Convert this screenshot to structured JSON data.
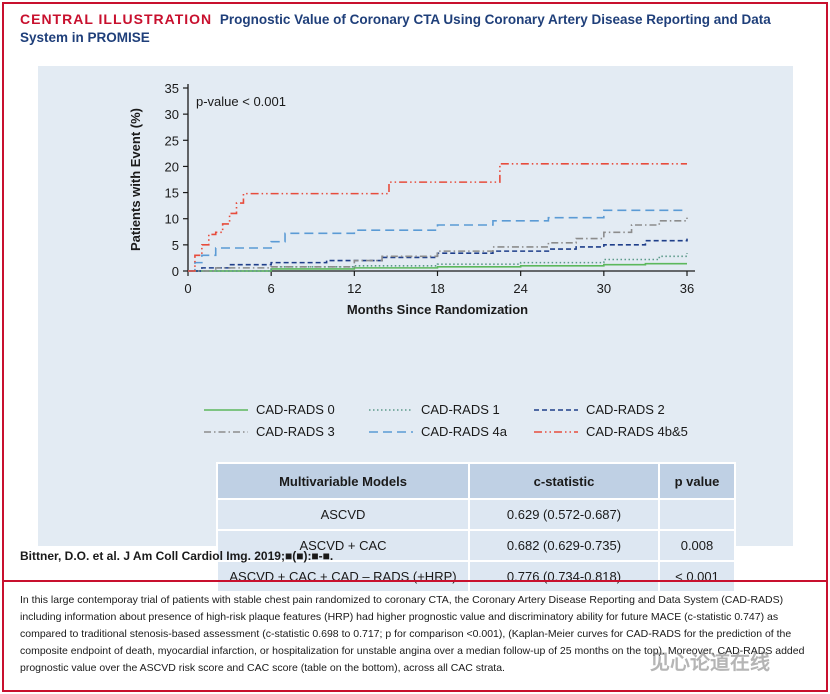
{
  "header": {
    "tag": "CENTRAL ILLUSTRATION",
    "title": "Prognostic Value of Coronary CTA Using Coronary Artery Disease Reporting and Data System in PROMISE"
  },
  "chart_data": {
    "type": "line",
    "title": "",
    "annotation": "p-value < 0.001",
    "xlabel": "Months Since Randomization",
    "ylabel": "Patients with Event (%)",
    "xlim": [
      0,
      36
    ],
    "ylim": [
      0,
      35
    ],
    "xticks": [
      0,
      6,
      12,
      18,
      24,
      30,
      36
    ],
    "yticks": [
      0,
      5,
      10,
      15,
      20,
      25,
      30,
      35
    ],
    "grid": false,
    "legend_position": "bottom",
    "series": [
      {
        "name": "CAD-RADS 0",
        "color": "#5cb85c",
        "dash": "solid",
        "x": [
          0,
          6,
          12,
          18,
          24,
          26,
          30,
          33,
          36
        ],
        "y": [
          0,
          0.4,
          0.6,
          0.8,
          1.0,
          1.0,
          1.2,
          1.4,
          1.4
        ]
      },
      {
        "name": "CAD-RADS 1",
        "color": "#5c9a8a",
        "dash": "dotted",
        "x": [
          0,
          6,
          12,
          18,
          24,
          30,
          34,
          36
        ],
        "y": [
          0,
          0.8,
          1.0,
          1.3,
          1.6,
          2.2,
          2.8,
          3.4
        ]
      },
      {
        "name": "CAD-RADS 2",
        "color": "#1f3f8a",
        "dash": "dashed",
        "x": [
          0,
          1,
          3,
          6,
          10,
          14,
          18,
          22,
          26,
          28,
          30,
          33,
          36
        ],
        "y": [
          0,
          0.6,
          1.2,
          1.6,
          2.0,
          2.6,
          3.4,
          3.8,
          4.2,
          4.6,
          5.0,
          5.8,
          6.2
        ]
      },
      {
        "name": "CAD-RADS 3",
        "color": "#8c8c8c",
        "dash": "dashdot",
        "x": [
          0,
          2,
          6,
          12,
          14,
          18,
          22,
          26,
          28,
          30,
          32,
          34,
          36
        ],
        "y": [
          0,
          0.6,
          0.8,
          2.0,
          2.8,
          3.8,
          4.6,
          5.4,
          6.2,
          7.4,
          8.8,
          9.6,
          10.2
        ]
      },
      {
        "name": "CAD-RADS 4a",
        "color": "#5b9bd5",
        "dash": "longdash",
        "x": [
          0,
          0.5,
          1,
          2,
          4,
          6,
          7,
          9,
          12,
          18,
          22,
          26,
          28,
          30,
          32,
          36
        ],
        "y": [
          0,
          1.6,
          3.0,
          4.4,
          4.4,
          5.6,
          7.2,
          7.2,
          7.8,
          8.8,
          9.6,
          10.2,
          10.2,
          11.6,
          11.6,
          11.6
        ]
      },
      {
        "name": "CAD-RADS 4b&5",
        "color": "#e74c3c",
        "dash": "dashdotdot",
        "x": [
          0,
          0.5,
          1,
          1.5,
          2,
          2.5,
          3,
          3.5,
          4,
          8,
          12,
          14,
          14.5,
          18,
          22,
          22.5,
          26,
          36
        ],
        "y": [
          0,
          3.0,
          5.0,
          7.0,
          7.4,
          9.0,
          11.0,
          13.0,
          14.8,
          14.8,
          14.8,
          14.8,
          17.0,
          17.0,
          17.0,
          20.5,
          20.5,
          20.5
        ]
      }
    ]
  },
  "table": {
    "headers": [
      "Multivariable Models",
      "c-statistic",
      "p value"
    ],
    "rows": [
      [
        "ASCVD",
        "0.629 (0.572-0.687)",
        ""
      ],
      [
        "ASCVD + CAC",
        "0.682 (0.629-0.735)",
        "0.008"
      ],
      [
        "ASCVD + CAC + CAD – RADS (+HRP)",
        "0.776 (0.734-0.818)",
        "< 0.001"
      ]
    ]
  },
  "citation": "Bittner, D.O. et al. J Am Coll Cardiol Img. 2019;■(■):■-■.",
  "description": "In this large contemporay trial of patients with stable chest pain randomized to coronary CTA, the Coronary Artery Disease Reporting and Data System (CAD-RADS) including information about presence of high-risk plaque features (HRP) had higher prognostic value and discriminatory ability for future MACE (c-statistic 0.747) as compared to traditional stenosis-based assessment (c-statistic 0.698 to 0.717; p for comparison <0.001), (Kaplan-Meier curves for CAD-RADS for the prediction of the composite endpoint of death, myocardial infarction, or hospitalization for unstable angina over a median follow-up of 25 months on the top). Moreover, CAD-RADS added prognostic value over the ASCVD risk score and CAC score (table on the bottom), across all CAC strata.",
  "watermark": "见心论道在线"
}
